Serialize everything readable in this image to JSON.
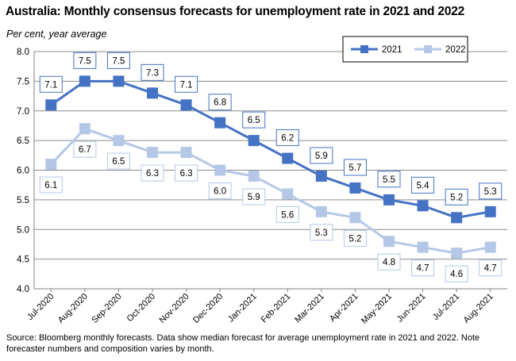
{
  "title": "Australia: Monthly consensus forecasts for unemployment rate in 2021 and 2022",
  "subtitle": "Per cent, year average",
  "source": "Source: Bloomberg monthly forecasts.  Data show median forecast for average unemployment rate in 2021 and 2022.  Note forecaster numbers and composition varies by month.",
  "chart_data": {
    "type": "line",
    "categories": [
      "Jul-2020",
      "Aug-2020",
      "Sep-2020",
      "Oct-2020",
      "Nov-2020",
      "Dec-2020",
      "Jan-2021",
      "Feb-2021",
      "Mar-2021",
      "Apr-2021",
      "May-2021",
      "Jun-2021",
      "Jul-2021",
      "Aug-2021"
    ],
    "series": [
      {
        "name": "2021",
        "color": "#4472c4",
        "values": [
          7.1,
          7.5,
          7.5,
          7.3,
          7.1,
          6.8,
          6.5,
          6.2,
          5.9,
          5.7,
          5.5,
          5.4,
          5.2,
          5.3
        ],
        "labels": [
          "7.1",
          "7.5",
          "7.5",
          "7.3",
          "7.1",
          "6.8",
          "6.5",
          "6.2",
          "5.9",
          "5.7",
          "5.5",
          "5.4",
          "5.2",
          "5.3"
        ],
        "label_position": "above"
      },
      {
        "name": "2022",
        "color": "#b4c7e7",
        "values": [
          6.1,
          6.7,
          6.5,
          6.3,
          6.3,
          6.0,
          5.9,
          5.6,
          5.3,
          5.2,
          4.8,
          4.7,
          4.6,
          4.7
        ],
        "labels": [
          "6.1",
          "6.7",
          "6.5",
          "6.3",
          "6.3",
          "6.0",
          "5.9",
          "5.6",
          "5.3",
          "5.2",
          "4.8",
          "4.7",
          "4.6",
          "4.7"
        ],
        "label_position": "below"
      }
    ],
    "ylim": [
      4.0,
      8.0
    ],
    "yticks": [
      "4.0",
      "4.5",
      "5.0",
      "5.5",
      "6.0",
      "6.5",
      "7.0",
      "7.5",
      "8.0"
    ],
    "grid": true,
    "legend_position": "top-right",
    "xlabel": "",
    "ylabel": ""
  }
}
